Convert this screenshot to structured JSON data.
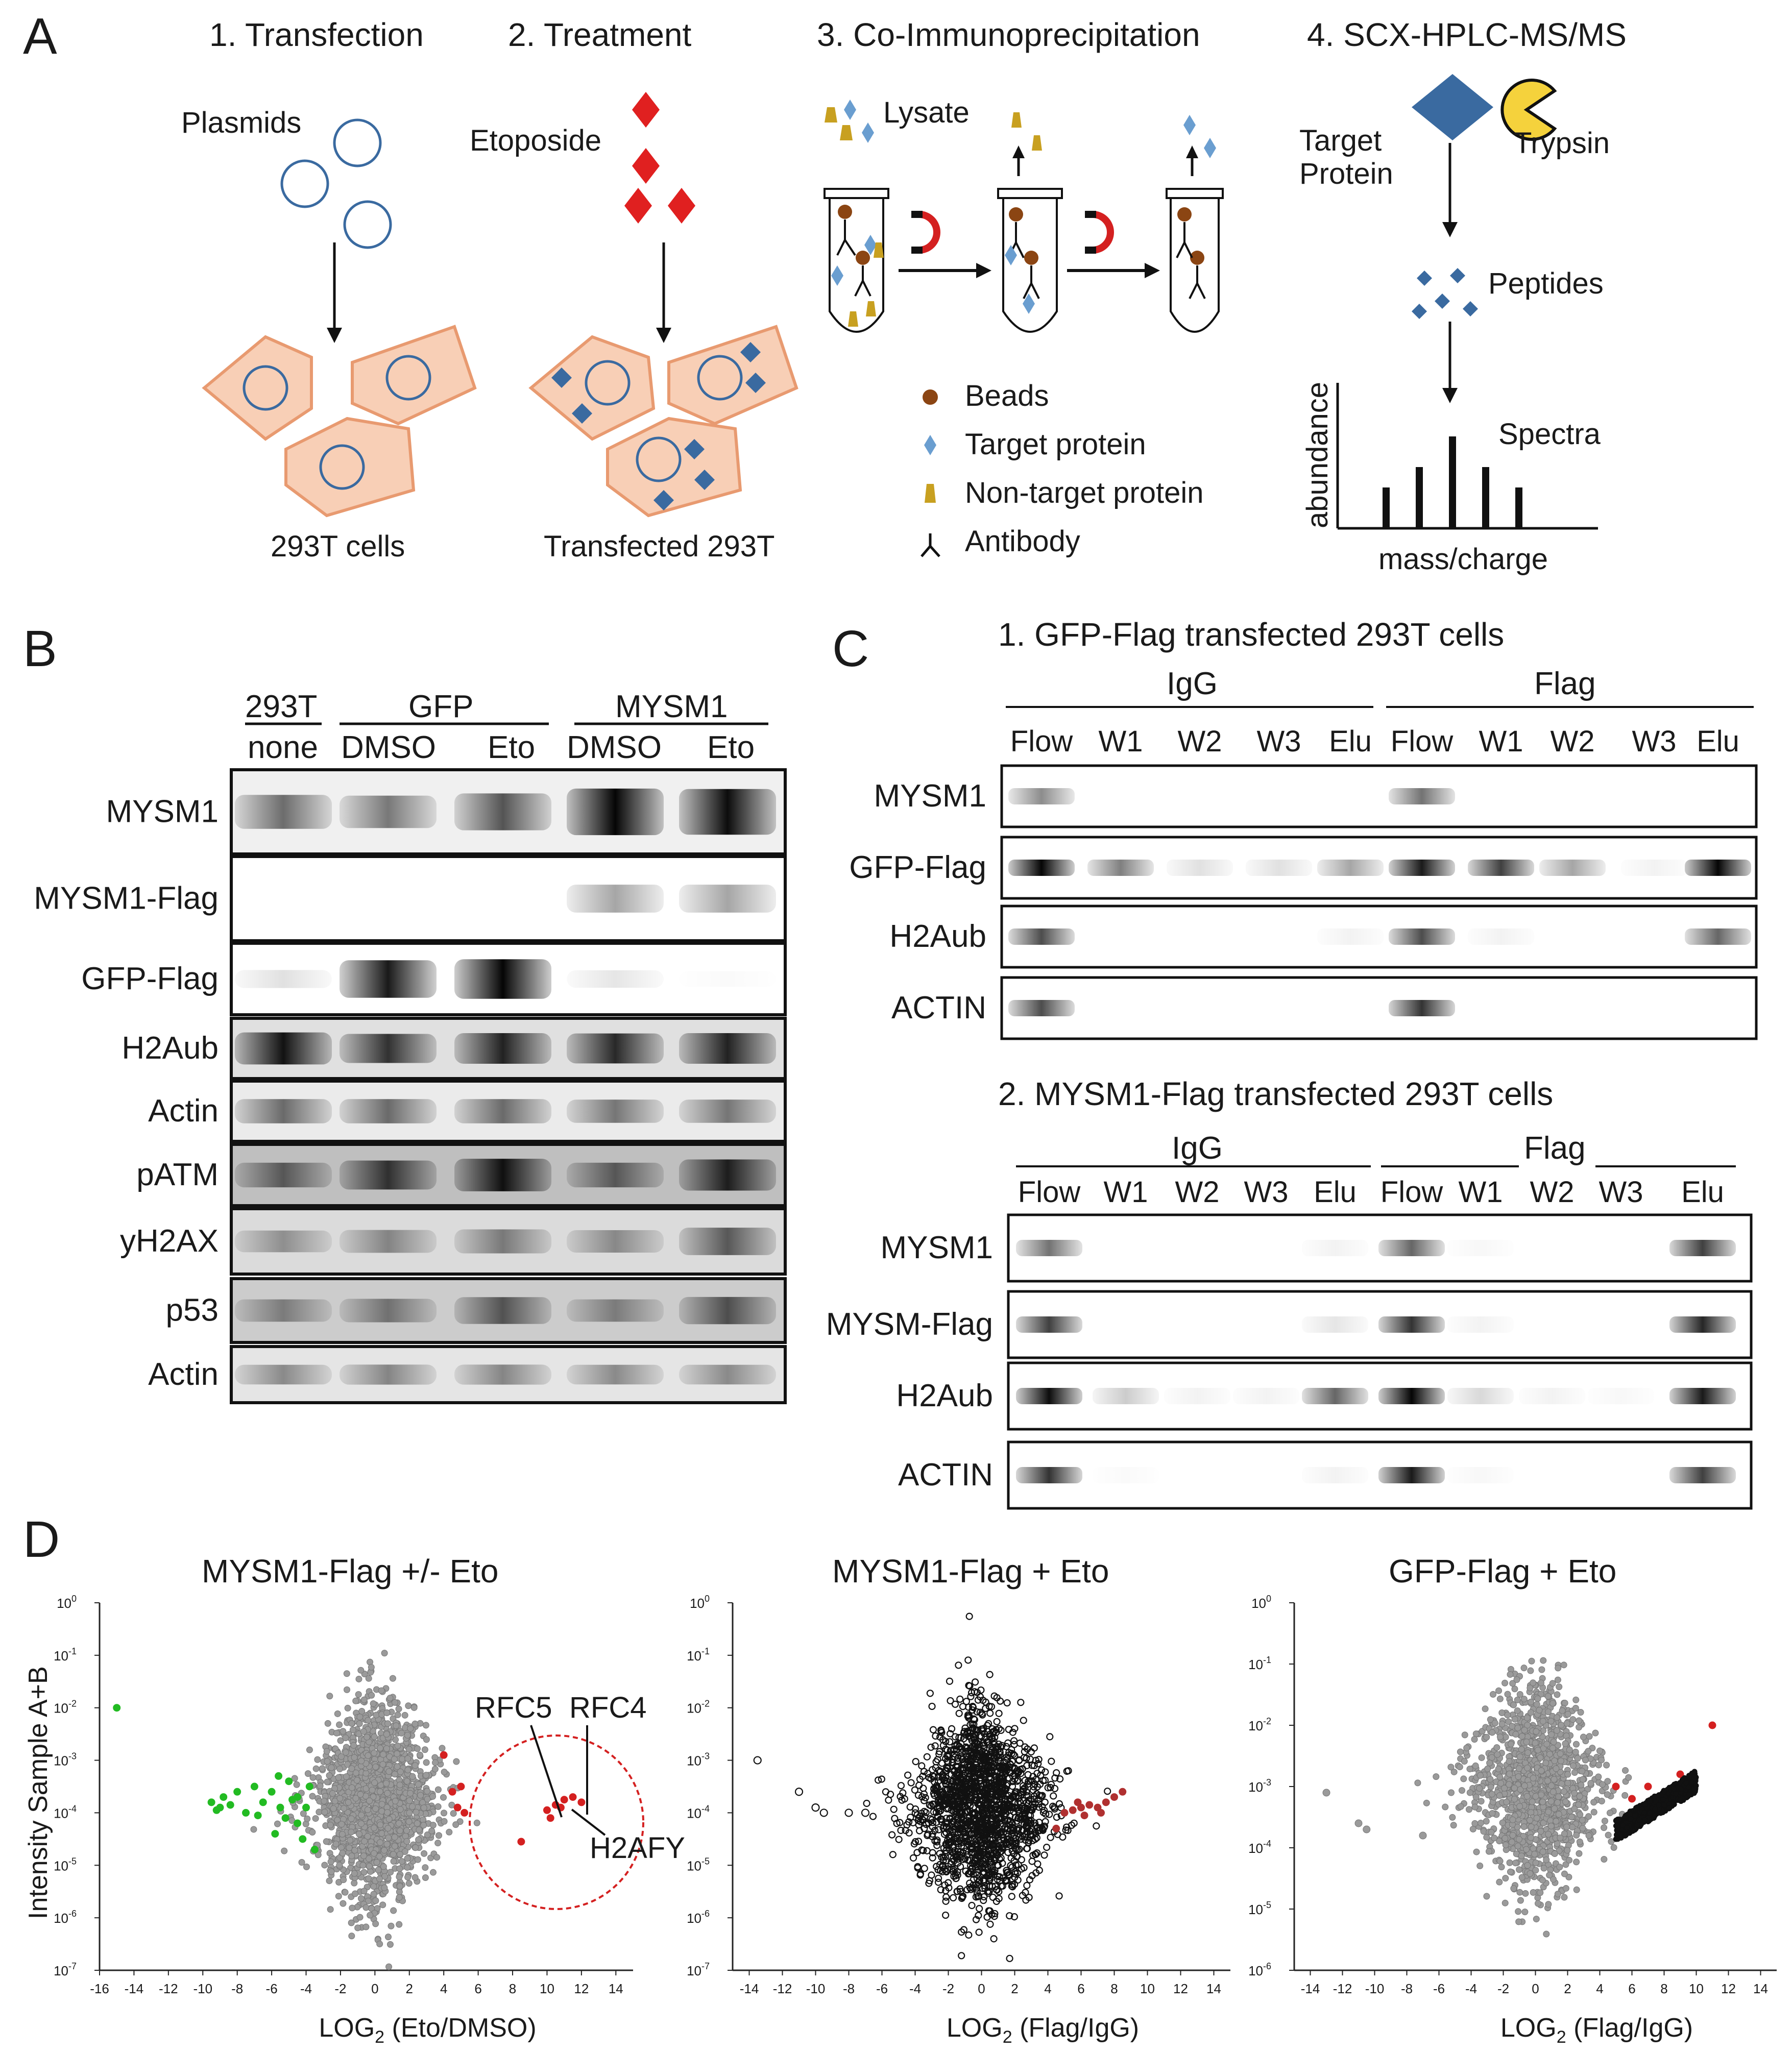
{
  "panels": [
    "A",
    "B",
    "C",
    "D"
  ],
  "panelA": {
    "steps": [
      "1. Transfection",
      "2. Treatment",
      "3. Co-Immunoprecipitation",
      "4. SCX-HPLC-MS/MS"
    ],
    "plasmids_label": "Plasmids",
    "cells_label": "293T cells",
    "etoposide_label": "Etoposide",
    "transfected_label": "Transfected 293T",
    "lysate_label": "Lysate",
    "legend": [
      "Beads",
      "Target protein",
      "Non-target protein",
      "Antibody"
    ],
    "target_protein_label": [
      "Target",
      "Protein"
    ],
    "trypsin_label": "Trypsin",
    "peptides_label": "Peptides",
    "spectra_label": "Spectra",
    "y_axis_label": "abundance",
    "x_axis_label": "mass/charge",
    "colors": {
      "cell": "#f8cfb6",
      "cell_border": "#e89a70",
      "blue": "#3a6aa0",
      "red": "#e02020",
      "bead": "#8b4513",
      "gold": "#c8a020"
    }
  },
  "panelB": {
    "header_groups": [
      "293T",
      "GFP",
      "MYSM1"
    ],
    "header_lanes": [
      "none",
      "DMSO",
      "Eto",
      "DMSO",
      "Eto"
    ],
    "rows": [
      "MYSM1",
      "MYSM1-Flag",
      "GFP-Flag",
      "H2Aub",
      "Actin",
      "pATM",
      "yH2AX",
      "p53",
      "Actin"
    ]
  },
  "panelC": {
    "sub1_title": "1. GFP-Flag transfected 293T cells",
    "sub2_title": "2. MYSM1-Flag transfected 293T cells",
    "groups": [
      "IgG",
      "Flag"
    ],
    "lanes": [
      "Flow",
      "W1",
      "W2",
      "W3",
      "Elu",
      "Flow",
      "W1",
      "W2",
      "W3",
      "Elu"
    ],
    "sub1_rows": [
      "MYSM1",
      "GFP-Flag",
      "H2Aub",
      "ACTIN"
    ],
    "sub2_rows": [
      "MYSM1",
      "MYSM-Flag",
      "H2Aub",
      "ACTIN"
    ]
  },
  "panelD": {
    "y_axis_label": "Intensity Sample A+B",
    "annotations": [
      "RFC5",
      "RFC4",
      "H2AFY"
    ],
    "chart_data": [
      {
        "type": "scatter",
        "title": "MYSM1-Flag +/- Eto",
        "xlabel_main": "LOG",
        "xlabel_sub": "2",
        "xlabel_rest": " (Eto/DMSO)",
        "xlim": [
          -16,
          15
        ],
        "xticks": [
          -16,
          -14,
          -12,
          -10,
          -8,
          -6,
          -4,
          -2,
          0,
          2,
          4,
          6,
          8,
          10,
          12,
          14
        ],
        "yscale": "log",
        "ylim_exp": [
          -7,
          0
        ],
        "series": [
          {
            "color": "#9a9a9a",
            "cluster": {
              "x_center": 0,
              "x_spread": 2.0,
              "y_center_exp": -3.8,
              "y_spread_exp": 0.9,
              "count": 1600
            }
          },
          {
            "color": "#22bb22",
            "points": [
              [
                -15,
                -2.0
              ],
              [
                -9.5,
                -3.8
              ],
              [
                -9,
                -3.9
              ],
              [
                -8.8,
                -3.7
              ],
              [
                -8,
                -3.6
              ],
              [
                -7.5,
                -4.0
              ],
              [
                -7,
                -3.5
              ],
              [
                -6.5,
                -3.8
              ],
              [
                -6,
                -3.6
              ],
              [
                -5.5,
                -3.9
              ],
              [
                -5.2,
                -4.1
              ],
              [
                -5,
                -3.4
              ],
              [
                -4.5,
                -3.7
              ],
              [
                -4.5,
                -4.2
              ],
              [
                -4,
                -3.9
              ],
              [
                -3.8,
                -3.5
              ],
              [
                -4.2,
                -4.5
              ],
              [
                -5.8,
                -4.4
              ],
              [
                -3.5,
                -4.7
              ],
              [
                -9.2,
                -3.95
              ],
              [
                -8.4,
                -3.85
              ],
              [
                -6.8,
                -4.05
              ],
              [
                -5.6,
                -3.3
              ],
              [
                -4.8,
                -3.75
              ]
            ]
          },
          {
            "color": "#d42020",
            "points": [
              [
                4,
                -2.9
              ],
              [
                4.5,
                -3.6
              ],
              [
                5,
                -3.5
              ],
              [
                4.8,
                -3.9
              ],
              [
                5.2,
                -4.0
              ],
              [
                10,
                -3.95
              ],
              [
                10.5,
                -3.85
              ],
              [
                11,
                -3.75
              ],
              [
                10.8,
                -3.9
              ],
              [
                11.5,
                -3.7
              ],
              [
                12,
                -3.8
              ],
              [
                10.2,
                -4.1
              ],
              [
                8.5,
                -4.55
              ]
            ]
          }
        ]
      },
      {
        "type": "scatter",
        "title": "MYSM1-Flag + Eto",
        "xlabel_main": "LOG",
        "xlabel_sub": "2",
        "xlabel_rest": " (Flag/IgG)",
        "xlim": [
          -15,
          15
        ],
        "xticks": [
          -14,
          -12,
          -10,
          -8,
          -6,
          -4,
          -2,
          0,
          2,
          4,
          6,
          8,
          10,
          12,
          14
        ],
        "yscale": "log",
        "ylim_exp": [
          -7,
          0
        ],
        "series": [
          {
            "color": "#111111",
            "hollow": true,
            "cluster": {
              "x_center": 0,
              "x_spread": 2.3,
              "y_center_exp": -3.9,
              "y_spread_exp": 0.85,
              "count": 1700
            }
          },
          {
            "color": "#111111",
            "hollow": true,
            "points": [
              [
                -13.5,
                -3.0
              ],
              [
                -11,
                -3.6
              ],
              [
                -10,
                -3.9
              ],
              [
                -9.5,
                -4.0
              ],
              [
                -8,
                -4.0
              ],
              [
                -7,
                -4.0
              ]
            ]
          },
          {
            "color": "#b03030",
            "points": [
              [
                5,
                -4.0
              ],
              [
                5.5,
                -3.95
              ],
              [
                6,
                -3.9
              ],
              [
                6.5,
                -3.85
              ],
              [
                7,
                -3.9
              ],
              [
                7.5,
                -3.8
              ],
              [
                8,
                -3.7
              ],
              [
                8.5,
                -3.6
              ],
              [
                6.2,
                -4.05
              ],
              [
                7.2,
                -4.0
              ],
              [
                5.8,
                -3.8
              ],
              [
                4.5,
                -4.3
              ]
            ]
          }
        ]
      },
      {
        "type": "scatter",
        "title": "GFP-Flag + Eto",
        "xlabel_main": "LOG",
        "xlabel_sub": "2",
        "xlabel_rest": " (Flag/IgG)",
        "xlim": [
          -15,
          15
        ],
        "xticks": [
          -14,
          -12,
          -10,
          -8,
          -6,
          -4,
          -2,
          0,
          2,
          4,
          6,
          8,
          10,
          12,
          14
        ],
        "yscale": "log",
        "ylim_exp": [
          -6,
          0
        ],
        "series": [
          {
            "color": "#9a9a9a",
            "cluster": {
              "x_center": 0,
              "x_spread": 2.2,
              "y_center_exp": -3.0,
              "y_spread_exp": 0.8,
              "count": 1300
            }
          },
          {
            "color": "#9a9a9a",
            "points": [
              [
                -13,
                -3.1
              ],
              [
                -11,
                -3.6
              ],
              [
                -10.5,
                -3.7
              ],
              [
                -7,
                -3.8
              ]
            ]
          },
          {
            "color": "#d42020",
            "points": [
              [
                11,
                -2.0
              ],
              [
                9,
                -2.8
              ],
              [
                8.5,
                -3.1
              ],
              [
                5,
                -3.0
              ],
              [
                6,
                -3.2
              ],
              [
                7,
                -3.0
              ]
            ]
          },
          {
            "color": "#111111",
            "band": {
              "x_from": 5,
              "x_to": 10,
              "y_low_exp": -3.9,
              "y_high_exp": -3.0,
              "count": 500
            }
          }
        ]
      }
    ]
  }
}
